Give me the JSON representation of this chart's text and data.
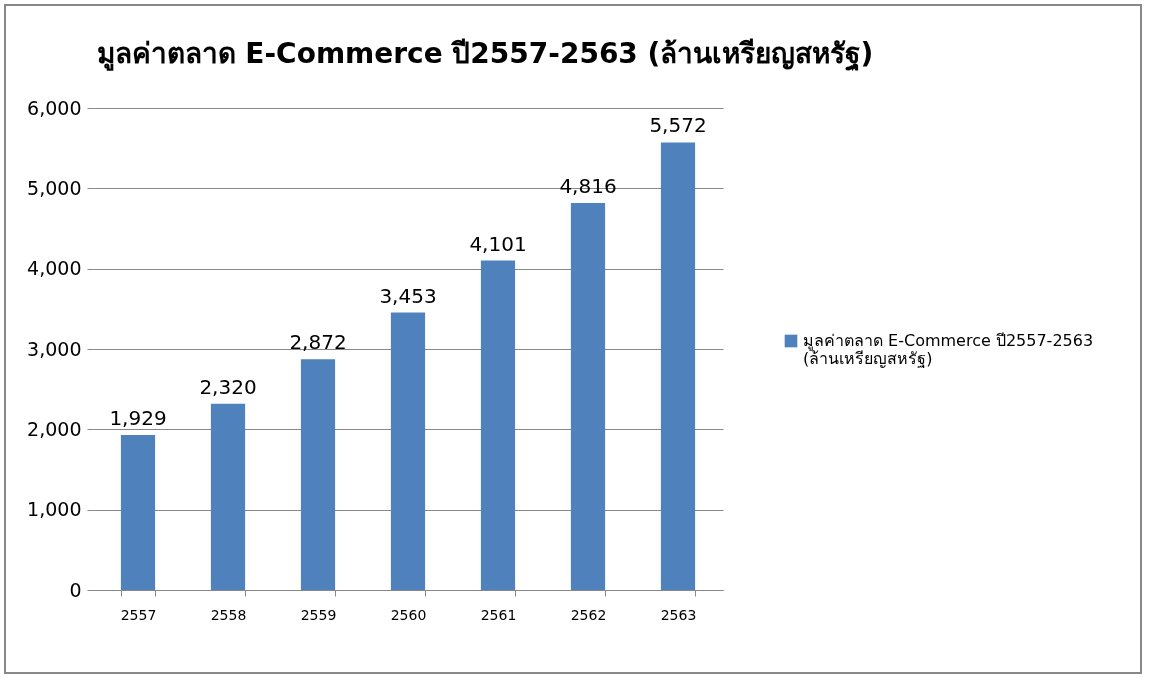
{
  "chart_data": {
    "type": "bar",
    "title": "มูลค่าตลาด E-Commerce ปี2557-2563 (ล้านเหรียญสหรัฐ)",
    "categories": [
      "2557",
      "2558",
      "2559",
      "2560",
      "2561",
      "2562",
      "2563"
    ],
    "series": [
      {
        "name": "มูลค่าตลาด E-Commerce ปี2557-2563 (ล้านเหรียญสหรัฐ)",
        "color": "#4f81bd",
        "values": [
          1929,
          2320,
          2872,
          3453,
          4101,
          4816,
          5572
        ],
        "value_labels": [
          "1,929",
          "2,320",
          "2,872",
          "3,453",
          "4,101",
          "4,816",
          "5,572"
        ]
      }
    ],
    "ylim": [
      0,
      6000
    ],
    "yticks": [
      0,
      {
        "value": 1000,
        "label": "1,000"
      },
      {
        "value": 2000,
        "label": "2,000"
      },
      {
        "value": 3000,
        "label": "3,000"
      },
      {
        "value": 4000,
        "label": "4,000"
      },
      {
        "value": 5000,
        "label": "5,000"
      },
      {
        "value": 6000,
        "label": "6,000"
      }
    ],
    "grid": "y",
    "legend": "right"
  }
}
